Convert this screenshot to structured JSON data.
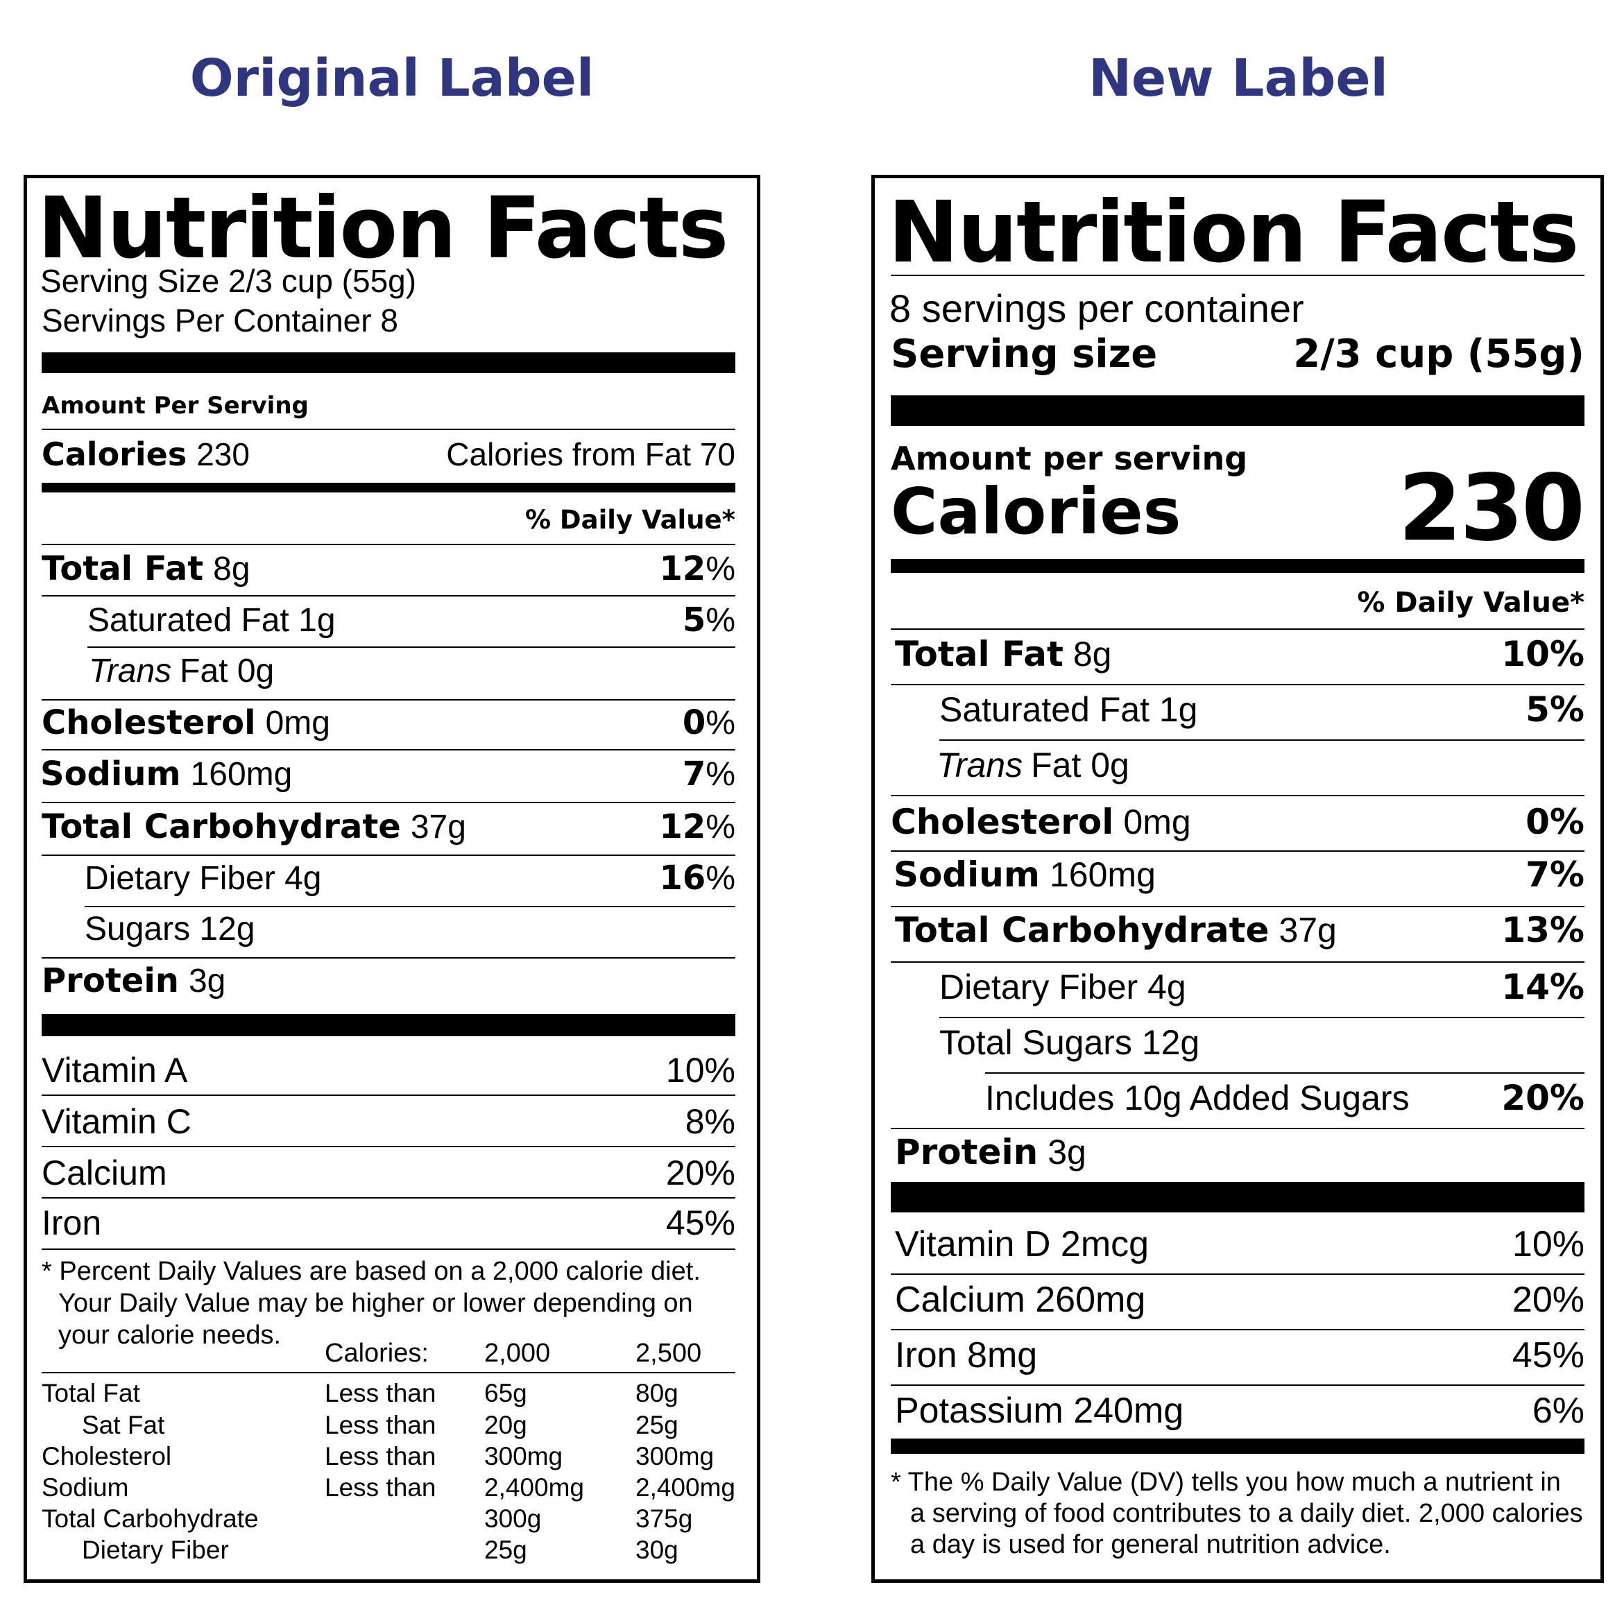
{
  "headings": {
    "left": "Original Label",
    "right": "New Label"
  },
  "original": {
    "title": "Nutrition Facts",
    "serving_size": "Serving Size 2/3 cup (55g)",
    "servings_per_container": "Servings Per Container 8",
    "amount_per_serving": "Amount Per Serving",
    "calories_label": "Calories",
    "calories_value": "230",
    "calories_from_fat": "Calories from Fat 70",
    "dv_header": "% Daily Value*",
    "nutrients": [
      {
        "name": "Total Fat",
        "amount": "8g",
        "pct": "12",
        "pct_sign": "%"
      },
      {
        "name": "Saturated Fat 1g",
        "amount": "",
        "pct": "5",
        "pct_sign": "%"
      },
      {
        "name": "Trans",
        "amount": "Fat 0g",
        "pct": "",
        "pct_sign": ""
      },
      {
        "name": "Cholesterol",
        "amount": "0mg",
        "pct": "0",
        "pct_sign": "%"
      },
      {
        "name": "Sodium",
        "amount": "160mg",
        "pct": "7",
        "pct_sign": "%"
      },
      {
        "name": "Total Carbohydrate",
        "amount": "37g",
        "pct": "12",
        "pct_sign": "%"
      },
      {
        "name": "Dietary Fiber 4g",
        "amount": "",
        "pct": "16",
        "pct_sign": "%"
      },
      {
        "name": "Sugars 12g",
        "amount": "",
        "pct": "",
        "pct_sign": ""
      },
      {
        "name": "Protein",
        "amount": "3g",
        "pct": "",
        "pct_sign": ""
      }
    ],
    "vitamins": [
      {
        "name": "Vitamin A",
        "pct": "10%"
      },
      {
        "name": "Vitamin C",
        "pct": "8%"
      },
      {
        "name": "Calcium",
        "pct": "20%"
      },
      {
        "name": "Iron",
        "pct": "45%"
      }
    ],
    "footnote": [
      "* Percent Daily Values are based on a 2,000 calorie diet.",
      "Your Daily Value may be higher or lower depending on",
      "your calorie needs."
    ],
    "ref_header": [
      "Calories:",
      "2,000",
      "2,500"
    ],
    "ref_rows": [
      [
        "Total Fat",
        "Less than",
        "65g",
        "80g"
      ],
      [
        "Sat Fat",
        "Less than",
        "20g",
        "25g"
      ],
      [
        "Cholesterol",
        "Less than",
        "300mg",
        "300mg"
      ],
      [
        "Sodium",
        "Less than",
        "2,400mg",
        "2,400mg"
      ],
      [
        "Total Carbohydrate",
        "",
        "300g",
        "375g"
      ],
      [
        "Dietary Fiber",
        "",
        "25g",
        "30g"
      ]
    ]
  },
  "new": {
    "title": "Nutrition Facts",
    "servings_per_container": "8 servings per container",
    "serving_size_label": "Serving size",
    "serving_size_value": "2/3 cup (55g)",
    "amount_per_serving": "Amount per serving",
    "calories_label": "Calories",
    "calories_value": "230",
    "dv_header": "% Daily Value*",
    "nutrients": [
      {
        "name": "Total Fat",
        "amount": "8g",
        "pct": "10%"
      },
      {
        "name": "Saturated Fat 1g",
        "amount": "",
        "pct": "5%"
      },
      {
        "name": "Trans",
        "amount": "Fat 0g",
        "pct": ""
      },
      {
        "name": "Cholesterol",
        "amount": "0mg",
        "pct": "0%"
      },
      {
        "name": "Sodium",
        "amount": "160mg",
        "pct": "7%"
      },
      {
        "name": "Total Carbohydrate",
        "amount": "37g",
        "pct": "13%"
      },
      {
        "name": "Dietary Fiber 4g",
        "amount": "",
        "pct": "14%"
      },
      {
        "name": "Total Sugars 12g",
        "amount": "",
        "pct": ""
      },
      {
        "name": "Includes 10g Added Sugars",
        "amount": "",
        "pct": "20%"
      },
      {
        "name": "Protein",
        "amount": "3g",
        "pct": ""
      }
    ],
    "vitamins": [
      {
        "name": "Vitamin D 2mcg",
        "pct": "10%"
      },
      {
        "name": "Calcium 260mg",
        "pct": "20%"
      },
      {
        "name": "Iron 8mg",
        "pct": "45%"
      },
      {
        "name": "Potassium 240mg",
        "pct": "6%"
      }
    ],
    "footnote": [
      "* The % Daily Value (DV) tells you how much a nutrient in",
      "a serving of food contributes to a daily diet. 2,000 calories",
      "a day is used for general nutrition advice."
    ]
  }
}
